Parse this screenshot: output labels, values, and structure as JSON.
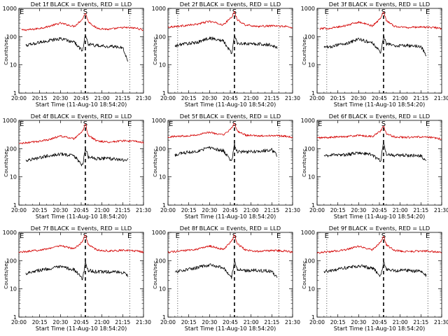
{
  "colors": {
    "events": "#000000",
    "lld": "#d40000",
    "axis": "#000000",
    "background": "#ffffff"
  },
  "chart_data": [
    {
      "type": "line",
      "title": "Det 1f BLACK = Events, RED = LLD",
      "xlabel": "Start Time (11-Aug-10 18:54:20)",
      "ylabel": "Counts/sec",
      "x_ticks": [
        "20:00",
        "20:15",
        "20:30",
        "20:45",
        "21:00",
        "21:15",
        "21:30"
      ],
      "y_ticks": [
        "1",
        "10",
        "100",
        "1000"
      ],
      "yscale": "log",
      "ylim": [
        1,
        1000
      ],
      "xlim": [
        "20:00",
        "21:30"
      ],
      "markers": [
        {
          "label": "E",
          "time": "20:00",
          "style": "dotted"
        },
        {
          "label": "S",
          "time": "20:48",
          "style": "dashed"
        },
        {
          "label": "E",
          "time": "21:20",
          "style": "dotted"
        }
      ],
      "series": [
        {
          "name": "LLD",
          "color": "red",
          "x": [
            "20:02",
            "20:10",
            "20:20",
            "20:30",
            "20:40",
            "20:46",
            "20:48",
            "20:50",
            "20:56",
            "21:05",
            "21:15",
            "21:25",
            "21:30"
          ],
          "values": [
            170,
            180,
            220,
            300,
            230,
            420,
            700,
            350,
            200,
            180,
            210,
            200,
            170
          ]
        },
        {
          "name": "Events",
          "color": "black",
          "x": [
            "20:05",
            "20:10",
            "20:20",
            "20:30",
            "20:40",
            "20:46",
            "20:48",
            "20:50",
            "20:56",
            "21:05",
            "21:15",
            "21:19"
          ],
          "values": [
            48,
            55,
            70,
            85,
            65,
            30,
            120,
            55,
            48,
            45,
            42,
            12
          ]
        }
      ]
    },
    {
      "type": "line",
      "title": "Det 2f BLACK = Events, RED = LLD",
      "xlabel": "Start Time (11-Aug-10 18:54:20)",
      "ylabel": "Counts/sec",
      "x_ticks": [
        "20:00",
        "20:15",
        "20:30",
        "20:45",
        "21:00",
        "21:15",
        "21:30"
      ],
      "y_ticks": [
        "1",
        "10",
        "100",
        "1000"
      ],
      "yscale": "log",
      "ylim": [
        1,
        1000
      ],
      "xlim": [
        "20:00",
        "21:30"
      ],
      "markers": [
        {
          "label": "E",
          "time": "20:07",
          "style": "dotted"
        },
        {
          "label": "S",
          "time": "20:48",
          "style": "dashed"
        },
        {
          "label": "E",
          "time": "21:20",
          "style": "dotted"
        }
      ],
      "series": [
        {
          "name": "LLD",
          "color": "red",
          "x": [
            "20:00",
            "20:10",
            "20:20",
            "20:30",
            "20:40",
            "20:46",
            "20:48",
            "20:50",
            "20:56",
            "21:05",
            "21:15",
            "21:25",
            "21:30"
          ],
          "values": [
            220,
            240,
            270,
            350,
            260,
            500,
            750,
            400,
            260,
            230,
            240,
            230,
            200
          ]
        },
        {
          "name": "Events",
          "color": "black",
          "x": [
            "20:05",
            "20:10",
            "20:20",
            "20:30",
            "20:40",
            "20:46",
            "20:48",
            "20:50",
            "20:56",
            "21:05",
            "21:15",
            "21:19"
          ],
          "values": [
            45,
            55,
            60,
            90,
            70,
            25,
            110,
            60,
            55,
            55,
            50,
            40
          ]
        }
      ]
    },
    {
      "type": "line",
      "title": "Det 3f BLACK = Events, RED = LLD",
      "xlabel": "Start Time (11-Aug-10 18:54:20)",
      "ylabel": "Counts/sec",
      "x_ticks": [
        "20:00",
        "20:15",
        "20:30",
        "20:45",
        "21:00",
        "21:15",
        "21:30"
      ],
      "y_ticks": [
        "1",
        "10",
        "100",
        "1000"
      ],
      "yscale": "log",
      "ylim": [
        1,
        1000
      ],
      "xlim": [
        "20:00",
        "21:30"
      ],
      "markers": [
        {
          "label": "E",
          "time": "20:07",
          "style": "dotted"
        },
        {
          "label": "S",
          "time": "20:48",
          "style": "dashed"
        },
        {
          "label": "E",
          "time": "21:20",
          "style": "dotted"
        }
      ],
      "series": [
        {
          "name": "LLD",
          "color": "red",
          "x": [
            "20:02",
            "20:10",
            "20:20",
            "20:30",
            "20:40",
            "20:46",
            "20:48",
            "20:50",
            "20:56",
            "21:05",
            "21:15",
            "21:25",
            "21:30"
          ],
          "values": [
            190,
            200,
            240,
            330,
            240,
            450,
            800,
            380,
            230,
            210,
            220,
            210,
            190
          ]
        },
        {
          "name": "Events",
          "color": "black",
          "x": [
            "20:05",
            "20:10",
            "20:20",
            "20:30",
            "20:40",
            "20:46",
            "20:48",
            "20:50",
            "20:56",
            "21:05",
            "21:15",
            "21:19"
          ],
          "values": [
            40,
            45,
            55,
            80,
            60,
            28,
            100,
            55,
            48,
            48,
            45,
            20
          ]
        }
      ]
    },
    {
      "type": "line",
      "title": "Det 4f BLACK = Events, RED = LLD",
      "xlabel": "Start Time (11-Aug-10 18:54:20)",
      "ylabel": "Counts/sec",
      "x_ticks": [
        "20:00",
        "20:15",
        "20:30",
        "20:45",
        "21:00",
        "21:15",
        "21:30"
      ],
      "y_ticks": [
        "1",
        "10",
        "100",
        "1000"
      ],
      "yscale": "log",
      "ylim": [
        1,
        1000
      ],
      "xlim": [
        "20:00",
        "21:30"
      ],
      "markers": [
        {
          "label": "E",
          "time": "20:00",
          "style": "dotted"
        },
        {
          "label": "S",
          "time": "20:48",
          "style": "dashed"
        },
        {
          "label": "E",
          "time": "21:20",
          "style": "dotted"
        }
      ],
      "series": [
        {
          "name": "LLD",
          "color": "red",
          "x": [
            "20:00",
            "20:10",
            "20:20",
            "20:30",
            "20:40",
            "20:46",
            "20:48",
            "20:50",
            "20:56",
            "21:05",
            "21:15",
            "21:25",
            "21:30"
          ],
          "values": [
            150,
            170,
            200,
            280,
            220,
            400,
            800,
            300,
            190,
            170,
            190,
            180,
            160
          ]
        },
        {
          "name": "Events",
          "color": "black",
          "x": [
            "20:05",
            "20:10",
            "20:20",
            "20:30",
            "20:40",
            "20:46",
            "20:48",
            "20:50",
            "20:56",
            "21:05",
            "21:15",
            "21:19"
          ],
          "values": [
            38,
            42,
            55,
            65,
            55,
            25,
            110,
            50,
            45,
            45,
            40,
            40
          ]
        }
      ]
    },
    {
      "type": "line",
      "title": "Det 5f BLACK = Events, RED = LLD",
      "xlabel": "Start Time (11-Aug-10 18:54:20)",
      "ylabel": "Counts/sec",
      "x_ticks": [
        "20:00",
        "20:15",
        "20:30",
        "20:45",
        "21:00",
        "21:15",
        "21:30"
      ],
      "y_ticks": [
        "1",
        "10",
        "100",
        "1000"
      ],
      "yscale": "log",
      "ylim": [
        1,
        1000
      ],
      "xlim": [
        "20:00",
        "21:30"
      ],
      "markers": [
        {
          "label": "E",
          "time": "20:00",
          "style": "dotted"
        },
        {
          "label": "S",
          "time": "20:48",
          "style": "dashed"
        },
        {
          "label": "E",
          "time": "21:20",
          "style": "dotted"
        }
      ],
      "series": [
        {
          "name": "LLD",
          "color": "red",
          "x": [
            "20:00",
            "20:10",
            "20:20",
            "20:30",
            "20:40",
            "20:46",
            "20:48",
            "20:50",
            "20:56",
            "21:05",
            "21:15",
            "21:25",
            "21:30"
          ],
          "values": [
            260,
            280,
            300,
            380,
            300,
            520,
            850,
            420,
            300,
            280,
            290,
            280,
            250
          ]
        },
        {
          "name": "Events",
          "color": "black",
          "x": [
            "20:05",
            "20:10",
            "20:20",
            "20:30",
            "20:40",
            "20:46",
            "20:48",
            "20:50",
            "20:56",
            "21:05",
            "21:15",
            "21:19"
          ],
          "values": [
            60,
            70,
            80,
            110,
            85,
            35,
            140,
            80,
            75,
            80,
            90,
            55
          ]
        }
      ]
    },
    {
      "type": "line",
      "title": "Det 6f BLACK = Events, RED = LLD",
      "xlabel": "Start Time (11-Aug-10 18:54:20)",
      "ylabel": "Counts/sec",
      "x_ticks": [
        "20:00",
        "20:15",
        "20:30",
        "20:45",
        "21:00",
        "21:15",
        "21:30"
      ],
      "y_ticks": [
        "1",
        "10",
        "100",
        "1000"
      ],
      "yscale": "log",
      "ylim": [
        1,
        1000
      ],
      "xlim": [
        "20:00",
        "21:30"
      ],
      "markers": [
        {
          "label": "E",
          "time": "20:00",
          "style": "dotted"
        },
        {
          "label": "S",
          "time": "20:48",
          "style": "dashed"
        },
        {
          "label": "E",
          "time": "21:20",
          "style": "dotted"
        }
      ],
      "series": [
        {
          "name": "LLD",
          "color": "red",
          "x": [
            "20:00",
            "20:10",
            "20:20",
            "20:30",
            "20:40",
            "20:46",
            "20:48",
            "20:50",
            "20:56",
            "21:05",
            "21:15",
            "21:25",
            "21:30"
          ],
          "values": [
            240,
            250,
            270,
            290,
            270,
            420,
            650,
            330,
            260,
            250,
            260,
            240,
            220
          ]
        },
        {
          "name": "Events",
          "color": "black",
          "x": [
            "20:05",
            "20:10",
            "20:20",
            "20:30",
            "20:40",
            "20:46",
            "20:48",
            "20:50",
            "20:56",
            "21:05",
            "21:15",
            "21:19"
          ],
          "values": [
            55,
            58,
            60,
            70,
            60,
            35,
            180,
            65,
            58,
            58,
            55,
            35
          ]
        }
      ]
    },
    {
      "type": "line",
      "title": "Det 7f BLACK = Events, RED = LLD",
      "xlabel": "Start Time (11-Aug-10 18:54:20)",
      "ylabel": "Counts/sec",
      "x_ticks": [
        "20:00",
        "20:15",
        "20:30",
        "20:45",
        "21:00",
        "21:15",
        "21:30"
      ],
      "y_ticks": [
        "1",
        "10",
        "100",
        "1000"
      ],
      "yscale": "log",
      "ylim": [
        1,
        1000
      ],
      "xlim": [
        "20:00",
        "21:30"
      ],
      "markers": [
        {
          "label": "E",
          "time": "20:00",
          "style": "dotted"
        },
        {
          "label": "S",
          "time": "20:48",
          "style": "dashed"
        },
        {
          "label": "E",
          "time": "21:20",
          "style": "dotted"
        }
      ],
      "series": [
        {
          "name": "LLD",
          "color": "red",
          "x": [
            "20:00",
            "20:10",
            "20:20",
            "20:30",
            "20:40",
            "20:46",
            "20:48",
            "20:50",
            "20:56",
            "21:05",
            "21:15",
            "21:25",
            "21:30"
          ],
          "values": [
            200,
            220,
            260,
            340,
            260,
            480,
            850,
            380,
            240,
            220,
            230,
            220,
            200
          ]
        },
        {
          "name": "Events",
          "color": "black",
          "x": [
            "20:05",
            "20:10",
            "20:20",
            "20:30",
            "20:40",
            "20:46",
            "20:48",
            "20:50",
            "20:56",
            "21:05",
            "21:15",
            "21:19"
          ],
          "values": [
            35,
            42,
            50,
            60,
            48,
            22,
            90,
            45,
            40,
            40,
            38,
            30
          ]
        }
      ]
    },
    {
      "type": "line",
      "title": "Det 8f BLACK = Events, RED = LLD",
      "xlabel": "Start Time (11-Aug-10 18:54:20)",
      "ylabel": "Counts/sec",
      "x_ticks": [
        "20:00",
        "20:15",
        "20:30",
        "20:45",
        "21:00",
        "21:15",
        "21:30"
      ],
      "y_ticks": [
        "1",
        "10",
        "100",
        "1000"
      ],
      "yscale": "log",
      "ylim": [
        1,
        1000
      ],
      "xlim": [
        "20:00",
        "21:30"
      ],
      "markers": [
        {
          "label": "E",
          "time": "20:07",
          "style": "dotted"
        },
        {
          "label": "S",
          "time": "20:48",
          "style": "dashed"
        },
        {
          "label": "E",
          "time": "21:20",
          "style": "dotted"
        }
      ],
      "series": [
        {
          "name": "LLD",
          "color": "red",
          "x": [
            "20:00",
            "20:10",
            "20:20",
            "20:30",
            "20:40",
            "20:46",
            "20:48",
            "20:50",
            "20:56",
            "21:05",
            "21:15",
            "21:25",
            "21:30"
          ],
          "values": [
            200,
            220,
            250,
            330,
            250,
            500,
            850,
            400,
            240,
            210,
            230,
            220,
            200
          ]
        },
        {
          "name": "Events",
          "color": "black",
          "x": [
            "20:05",
            "20:10",
            "20:20",
            "20:30",
            "20:40",
            "20:46",
            "20:48",
            "20:50",
            "20:56",
            "21:05",
            "21:15",
            "21:19"
          ],
          "values": [
            38,
            45,
            55,
            70,
            55,
            25,
            100,
            50,
            45,
            45,
            42,
            25
          ]
        }
      ]
    },
    {
      "type": "line",
      "title": "Det 9f BLACK = Events, RED = LLD",
      "xlabel": "Start Time (11-Aug-10 18:54:20)",
      "ylabel": "Counts/sec",
      "x_ticks": [
        "20:00",
        "20:15",
        "20:30",
        "20:45",
        "21:00",
        "21:15",
        "21:30"
      ],
      "y_ticks": [
        "1",
        "10",
        "100",
        "1000"
      ],
      "yscale": "log",
      "ylim": [
        1,
        1000
      ],
      "xlim": [
        "20:00",
        "21:30"
      ],
      "markers": [
        {
          "label": "E",
          "time": "20:07",
          "style": "dotted"
        },
        {
          "label": "S",
          "time": "20:48",
          "style": "dashed"
        },
        {
          "label": "E",
          "time": "21:20",
          "style": "dotted"
        }
      ],
      "series": [
        {
          "name": "LLD",
          "color": "red",
          "x": [
            "20:00",
            "20:10",
            "20:20",
            "20:30",
            "20:40",
            "20:46",
            "20:48",
            "20:50",
            "20:56",
            "21:05",
            "21:15",
            "21:25",
            "21:30"
          ],
          "values": [
            190,
            210,
            240,
            320,
            240,
            460,
            750,
            360,
            230,
            210,
            220,
            210,
            190
          ]
        },
        {
          "name": "Events",
          "color": "black",
          "x": [
            "20:05",
            "20:10",
            "20:20",
            "20:30",
            "20:40",
            "20:46",
            "20:48",
            "20:50",
            "20:56",
            "21:05",
            "21:15",
            "21:19"
          ],
          "values": [
            40,
            45,
            55,
            65,
            55,
            28,
            90,
            50,
            45,
            45,
            42,
            30
          ]
        }
      ]
    }
  ]
}
